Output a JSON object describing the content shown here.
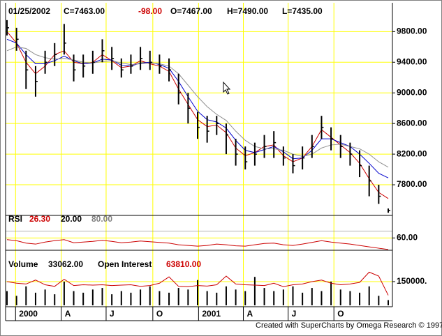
{
  "chart_data": [
    {
      "type": "ohlc",
      "header": {
        "date": "01/25/2002",
        "close": "C=7463.00",
        "change": "-98.00",
        "open": "O=7467.00",
        "high": "H=7490.00",
        "low": "L=7435.00"
      },
      "x": [
        0,
        1,
        2,
        3,
        4,
        5,
        6,
        7,
        8,
        9,
        10,
        11,
        12,
        13,
        14,
        15,
        16,
        17,
        18,
        19,
        20,
        21,
        22,
        23,
        24,
        25,
        26,
        27,
        28,
        29,
        30,
        31,
        32,
        33,
        34,
        35,
        36,
        37,
        38,
        39,
        40
      ],
      "xlim": [
        0,
        40
      ],
      "xticks": [
        {
          "value": 0.9,
          "label": "2000"
        },
        {
          "value": 5.7,
          "label": "A"
        },
        {
          "value": 10.4,
          "label": "J"
        },
        {
          "value": 15.3,
          "label": "O"
        },
        {
          "value": 20.1,
          "label": "2001"
        },
        {
          "value": 24.8,
          "label": "A"
        },
        {
          "value": 29.5,
          "label": "J"
        },
        {
          "value": 34.3,
          "label": "O"
        }
      ],
      "high": [
        9950,
        9850,
        9550,
        9350,
        9550,
        9650,
        9900,
        9500,
        9500,
        9550,
        9700,
        9600,
        9450,
        9500,
        9600,
        9550,
        9500,
        9450,
        9250,
        9000,
        8750,
        8700,
        8700,
        8600,
        8400,
        8300,
        8350,
        8450,
        8500,
        8300,
        8200,
        8300,
        8450,
        8700,
        8550,
        8450,
        8350,
        8250,
        8050,
        7800,
        7490
      ],
      "low": [
        9750,
        9550,
        9050,
        8950,
        9250,
        9350,
        9500,
        9150,
        9200,
        9250,
        9400,
        9300,
        9200,
        9250,
        9300,
        9300,
        9250,
        9150,
        8850,
        8600,
        8400,
        8350,
        8450,
        8200,
        8050,
        8000,
        8050,
        8150,
        8150,
        8050,
        7950,
        8000,
        8150,
        8400,
        8250,
        8150,
        8050,
        7900,
        7650,
        7550,
        7435
      ],
      "close": [
        9850,
        9700,
        9300,
        9150,
        9400,
        9500,
        9650,
        9300,
        9350,
        9400,
        9550,
        9450,
        9300,
        9350,
        9450,
        9400,
        9350,
        9300,
        9000,
        8800,
        8550,
        8500,
        8600,
        8450,
        8200,
        8100,
        8200,
        8300,
        8350,
        8150,
        8050,
        8150,
        8300,
        8550,
        8400,
        8300,
        8200,
        8050,
        7850,
        7650,
        7463
      ],
      "color": "#000000",
      "series": [
        {
          "color": "#cc0000",
          "values": [
            9800,
            9650,
            9400,
            9250,
            9350,
            9500,
            9550,
            9400,
            9380,
            9400,
            9500,
            9420,
            9330,
            9350,
            9420,
            9380,
            9350,
            9280,
            9050,
            8850,
            8650,
            8560,
            8580,
            8480,
            8280,
            8180,
            8220,
            8300,
            8320,
            8180,
            8100,
            8150,
            8300,
            8520,
            8420,
            8320,
            8220,
            8080,
            7880,
            7700,
            7620
          ]
        },
        {
          "color": "#0000cc",
          "values": [
            9700,
            9650,
            9500,
            9380,
            9380,
            9420,
            9480,
            9420,
            9380,
            9390,
            9440,
            9430,
            9360,
            9350,
            9390,
            9400,
            9370,
            9320,
            9150,
            8950,
            8760,
            8650,
            8620,
            8540,
            8380,
            8250,
            8220,
            8260,
            8300,
            8230,
            8140,
            8150,
            8250,
            8400,
            8400,
            8350,
            8300,
            8200,
            8080,
            7950,
            7890
          ]
        },
        {
          "color": "#909090",
          "values": [
            9550,
            9600,
            9580,
            9500,
            9460,
            9440,
            9450,
            9430,
            9400,
            9390,
            9410,
            9420,
            9390,
            9370,
            9380,
            9390,
            9380,
            9350,
            9250,
            9100,
            8950,
            8820,
            8720,
            8640,
            8500,
            8380,
            8300,
            8270,
            8270,
            8250,
            8200,
            8170,
            8200,
            8280,
            8320,
            8330,
            8300,
            8270,
            8200,
            8100,
            8030
          ]
        }
      ],
      "ylim": [
        7400,
        10140
      ],
      "yticks": [
        {
          "value": 7800,
          "label": "7800.00"
        },
        {
          "value": 8200,
          "label": "8200.00"
        },
        {
          "value": 8600,
          "label": "8600.00"
        },
        {
          "value": 9000,
          "label": "9000.00"
        },
        {
          "value": 9400,
          "label": "9400.00"
        },
        {
          "value": 9800,
          "label": "9800.00"
        }
      ],
      "grid": true
    },
    {
      "type": "line",
      "label": "RSI",
      "current": "26.30",
      "series": [
        {
          "color": "#cc0000",
          "values": [
            55,
            52,
            45,
            42,
            48,
            52,
            55,
            46,
            48,
            50,
            53,
            50,
            46,
            48,
            51,
            49,
            47,
            45,
            40,
            38,
            36,
            38,
            42,
            40,
            37,
            36,
            40,
            44,
            45,
            40,
            38,
            42,
            47,
            52,
            48,
            45,
            42,
            38,
            34,
            30,
            26.3
          ]
        }
      ],
      "levels": [
        {
          "value": 20,
          "label": "20.00",
          "color": "#000000"
        },
        {
          "value": 80,
          "label": "80.00",
          "color": "#808080"
        }
      ],
      "ylim": [
        24,
        126
      ],
      "yticks": [
        {
          "value": 60,
          "label": "60.00"
        }
      ],
      "grid": true
    },
    {
      "type": "bar",
      "label": "Volume",
      "current": "33062.00",
      "color": "#000000",
      "values": [
        90000,
        60000,
        120000,
        80000,
        100000,
        70000,
        150000,
        90000,
        80000,
        100000,
        110000,
        70000,
        90000,
        80000,
        100000,
        120000,
        90000,
        80000,
        110000,
        100000,
        160000,
        90000,
        80000,
        120000,
        100000,
        90000,
        180000,
        110000,
        90000,
        100000,
        120000,
        80000,
        110000,
        90000,
        150000,
        100000,
        90000,
        80000,
        120000,
        60000,
        33062
      ],
      "series": [
        {
          "name": "Open Interest",
          "current": "63810.00",
          "color": "#cc0000",
          "values": [
            150000,
            140000,
            135000,
            160000,
            130000,
            120000,
            165000,
            125000,
            130000,
            128000,
            130000,
            125000,
            128000,
            130000,
            120000,
            125000,
            140000,
            180000,
            120000,
            118000,
            125000,
            122000,
            130000,
            185000,
            135000,
            130000,
            128000,
            125000,
            140000,
            118000,
            130000,
            135000,
            150000,
            160000,
            140000,
            130000,
            135000,
            145000,
            210000,
            185000,
            63810
          ]
        }
      ],
      "ylim": [
        0,
        300000
      ],
      "yticks": [
        {
          "value": 150000,
          "label": "150000."
        }
      ],
      "grid": true
    }
  ],
  "footer": "Created with SuperCharts by Omega Research © 1997"
}
